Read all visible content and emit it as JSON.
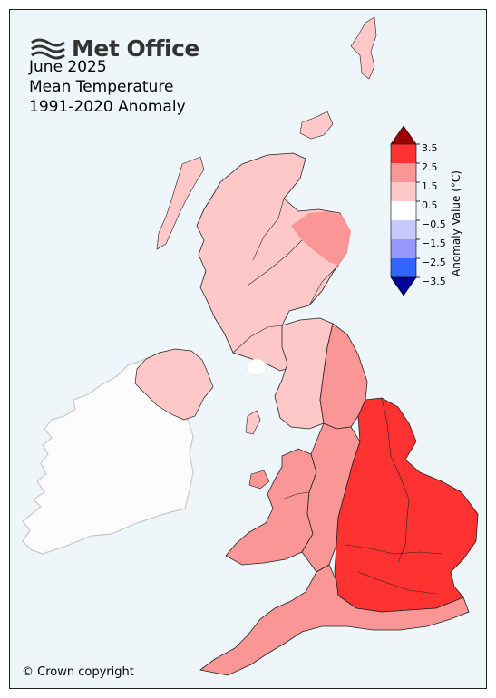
{
  "brand": {
    "name": "Met Office"
  },
  "titles": [
    "June 2025",
    "Mean Temperature",
    "1991-2020 Anomaly"
  ],
  "copyright": "© Crown copyright",
  "legend": {
    "label": "Anomaly Value (°C)",
    "ticks": [
      "3.5",
      "2.5",
      "1.5",
      "0.5",
      "−0.5",
      "−1.5",
      "−2.5",
      "−3.5"
    ],
    "bins": [
      {
        "range": "> 3.5",
        "color": "#9b0000"
      },
      {
        "range": "2.5 to 3.5",
        "color": "#ff3232"
      },
      {
        "range": "1.5 to 2.5",
        "color": "#fa9696"
      },
      {
        "range": "0.5 to 1.5",
        "color": "#ffc8c8"
      },
      {
        "range": "-0.5 to 0.5",
        "color": "#ffffff"
      },
      {
        "range": "-1.5 to -0.5",
        "color": "#c8c8ff"
      },
      {
        "range": "-2.5 to -1.5",
        "color": "#9696ff"
      },
      {
        "range": "-3.5 to -2.5",
        "color": "#3264ff"
      },
      {
        "range": "< -3.5",
        "color": "#00009b"
      }
    ]
  },
  "colors": {
    "background": "#eef6fa",
    "ireland": "#fcfcfc",
    "ireland_outline": "#c8c8c8"
  }
}
